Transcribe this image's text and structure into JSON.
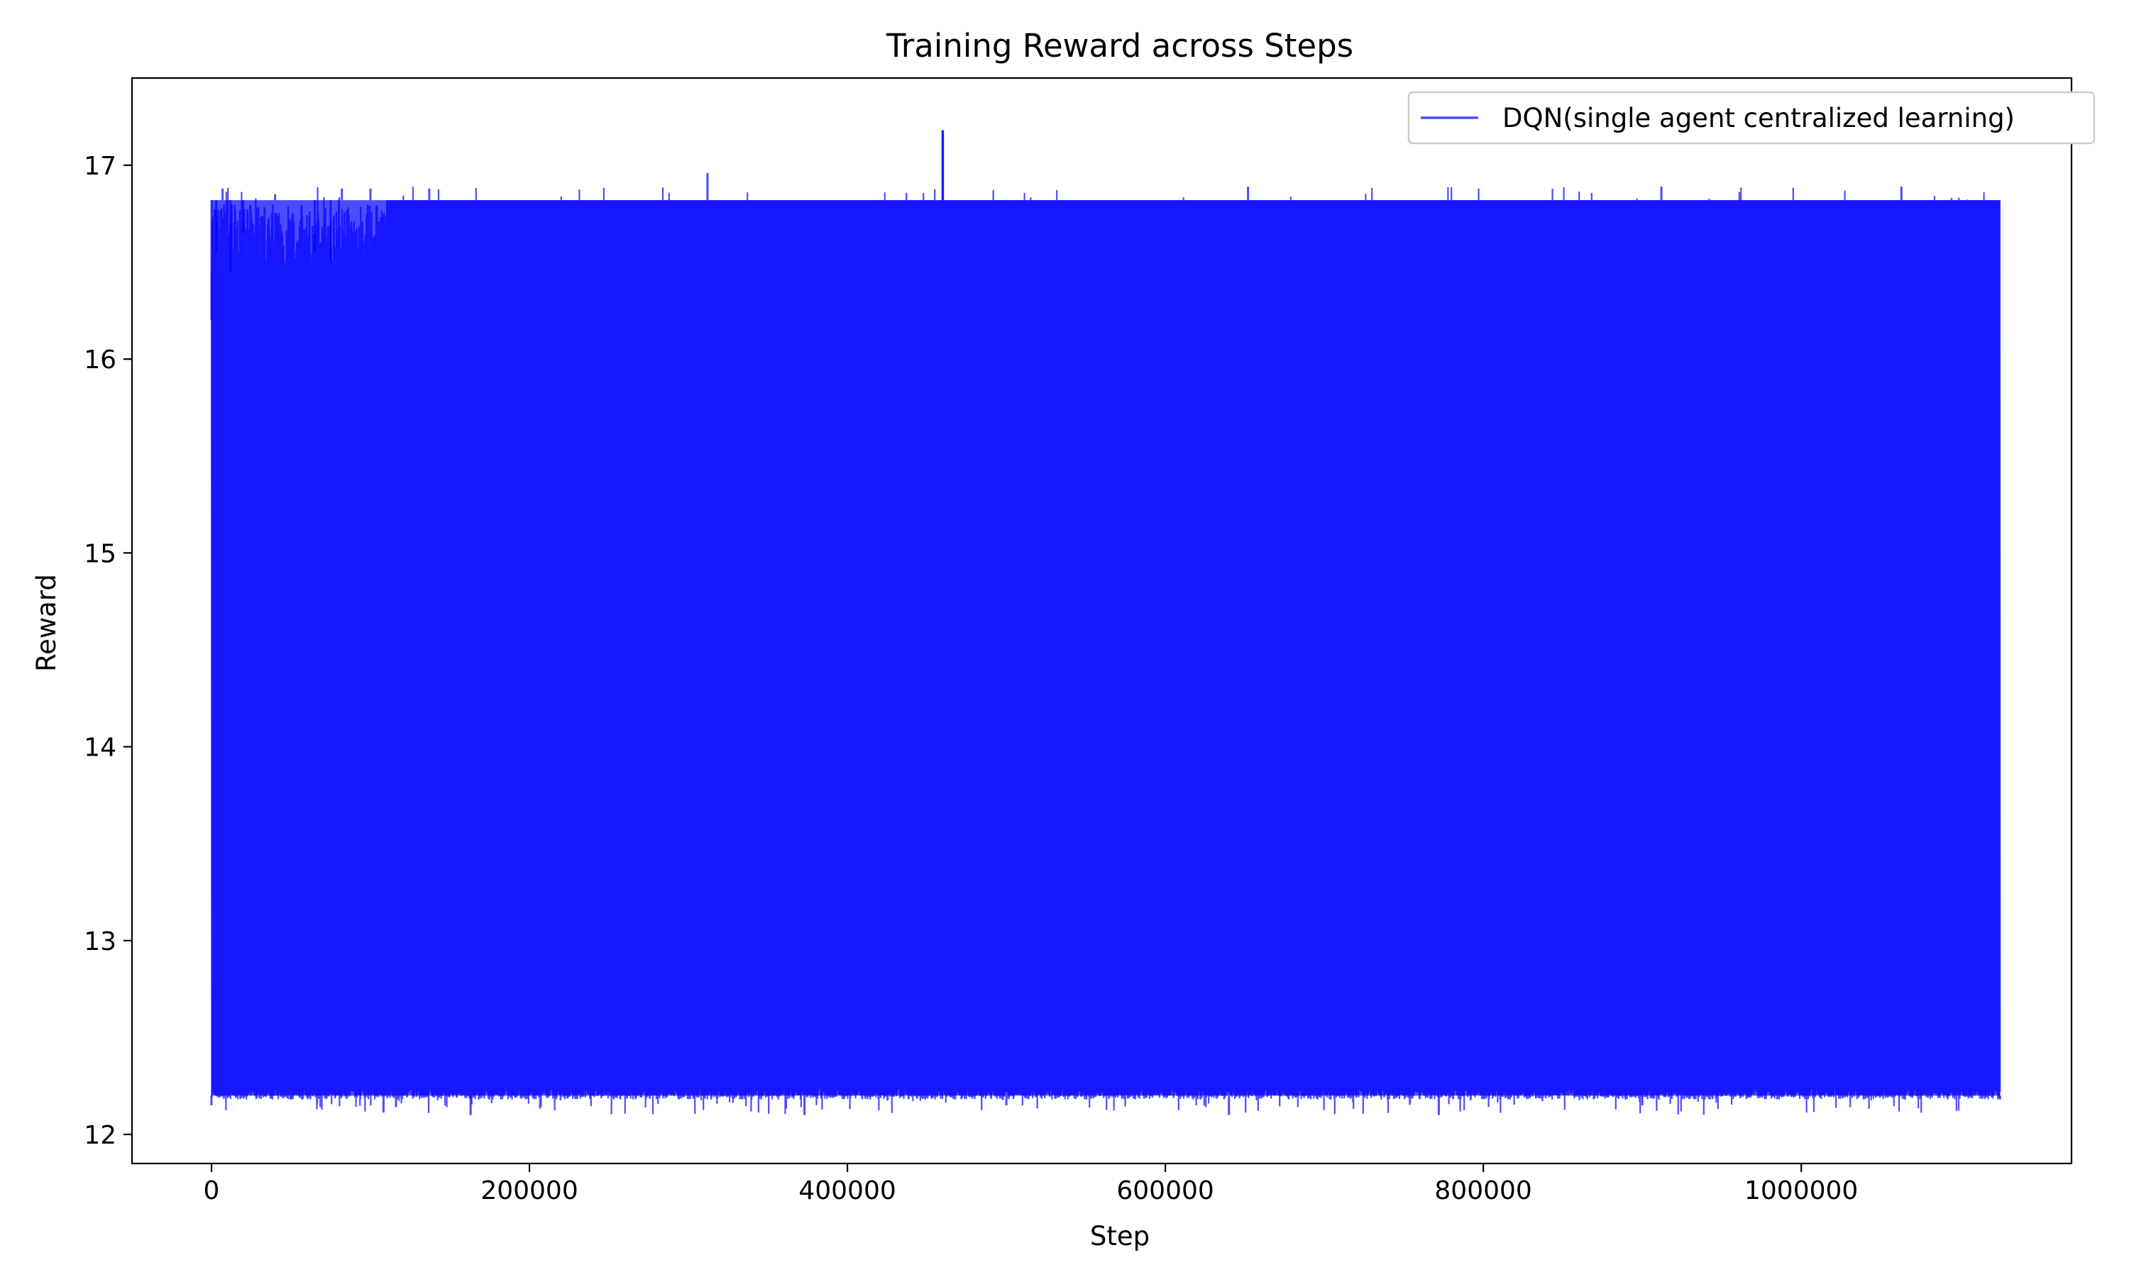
{
  "chart_data": {
    "type": "line",
    "title": "Training Reward across Steps",
    "xlabel": "Step",
    "ylabel": "Reward",
    "xlim": [
      -50000,
      1170000
    ],
    "ylim": [
      11.85,
      17.45
    ],
    "x_ticks": [
      0,
      200000,
      400000,
      600000,
      800000,
      1000000
    ],
    "x_tick_labels": [
      "0",
      "200000",
      "400000",
      "600000",
      "800000",
      "1000000"
    ],
    "y_ticks": [
      12,
      13,
      14,
      15,
      16,
      17
    ],
    "y_tick_labels": [
      "12",
      "13",
      "14",
      "15",
      "16",
      "17"
    ],
    "grid": false,
    "legend_position": "top-right",
    "series": [
      {
        "name": "DQN(single agent centralized learning)",
        "color": "#0000ff",
        "opacity": 0.7,
        "x_start": 0,
        "x_end": 1125000,
        "band_low": 12.2,
        "band_high": 16.82,
        "notable_peak": {
          "x": 460000,
          "y": 17.18
        },
        "upper_envelope": [
          {
            "x": 0,
            "y": 16.2
          },
          {
            "x": 3000,
            "y": 16.55
          },
          {
            "x": 7000,
            "y": 16.88
          },
          {
            "x": 12000,
            "y": 16.45
          },
          {
            "x": 20000,
            "y": 16.65
          },
          {
            "x": 25000,
            "y": 16.82
          },
          {
            "x": 40000,
            "y": 16.85
          },
          {
            "x": 55000,
            "y": 16.82
          },
          {
            "x": 65000,
            "y": 16.55
          },
          {
            "x": 75000,
            "y": 16.5
          },
          {
            "x": 82000,
            "y": 16.88
          },
          {
            "x": 100000,
            "y": 16.88
          },
          {
            "x": 110000,
            "y": 16.82
          },
          {
            "x": 137000,
            "y": 16.88
          },
          {
            "x": 312000,
            "y": 16.96
          },
          {
            "x": 460000,
            "y": 17.18
          },
          {
            "x": 652000,
            "y": 16.89
          },
          {
            "x": 912000,
            "y": 16.89
          },
          {
            "x": 1063000,
            "y": 16.89
          },
          {
            "x": 1125000,
            "y": 16.82
          }
        ],
        "lower_envelope": [
          {
            "x": 0,
            "y": 12.15
          },
          {
            "x": 50000,
            "y": 12.18
          },
          {
            "x": 100000,
            "y": 12.2
          },
          {
            "x": 163000,
            "y": 12.1
          },
          {
            "x": 373000,
            "y": 12.1
          },
          {
            "x": 500000,
            "y": 12.15
          },
          {
            "x": 640000,
            "y": 12.1
          },
          {
            "x": 772000,
            "y": 12.1
          },
          {
            "x": 900000,
            "y": 12.15
          },
          {
            "x": 1125000,
            "y": 12.18
          }
        ]
      }
    ]
  }
}
